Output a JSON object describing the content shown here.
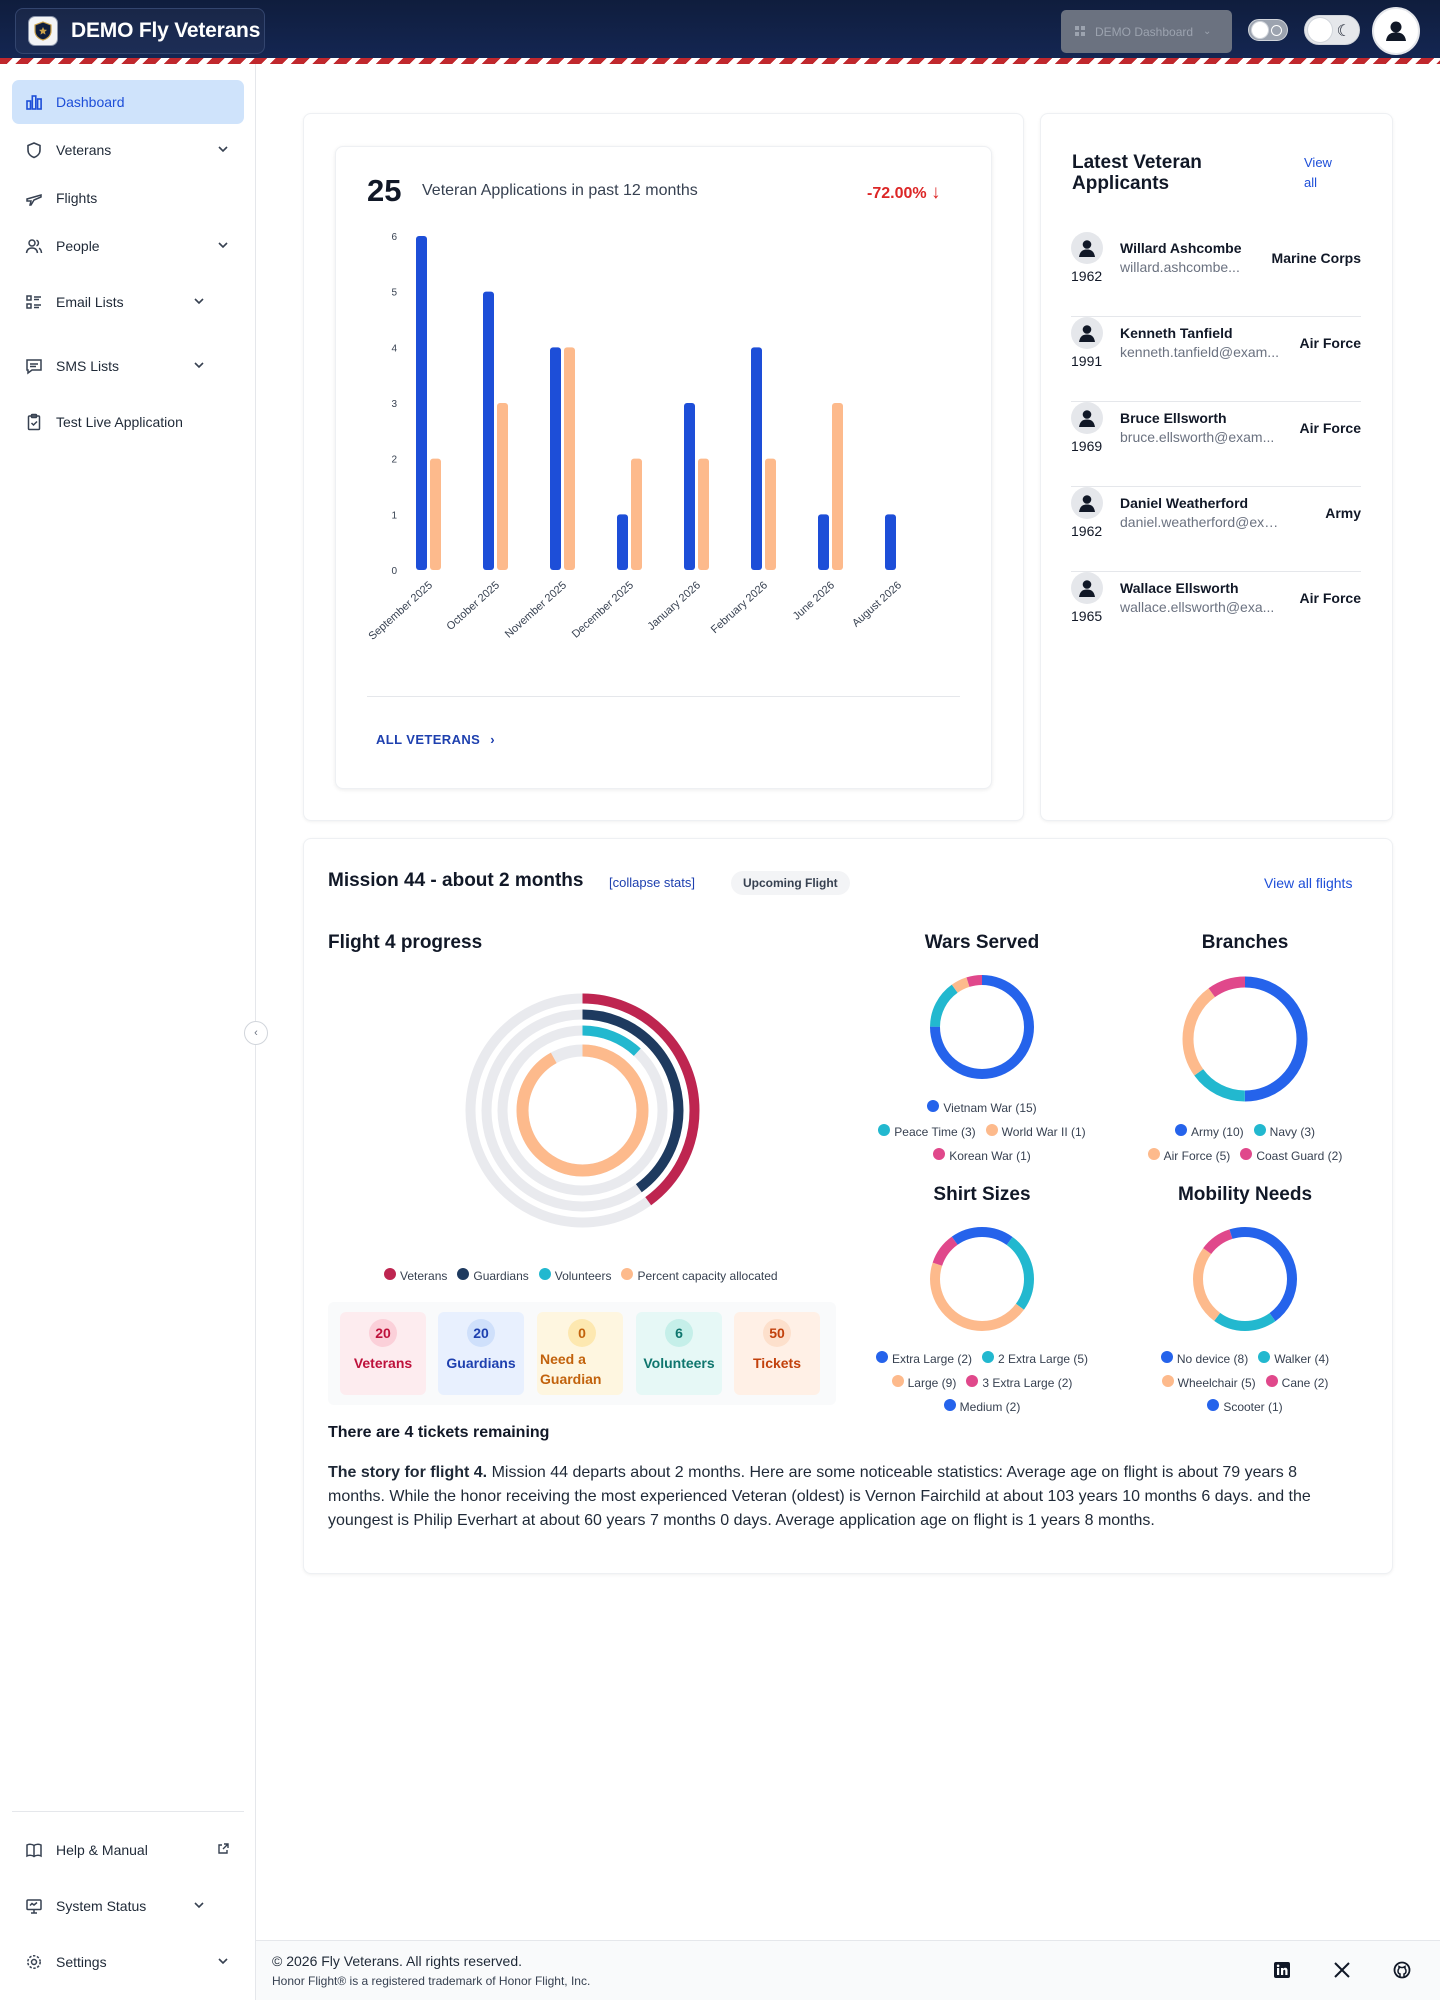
{
  "header": {
    "brand": "DEMO Fly Veterans",
    "dashboard_select": "DEMO Dashboard"
  },
  "sidebar": {
    "items": [
      {
        "label": "Dashboard",
        "icon": "bar-chart-icon",
        "active": true
      },
      {
        "label": "Veterans",
        "icon": "shield-icon",
        "expandable": true
      },
      {
        "label": "Flights",
        "icon": "plane-icon"
      },
      {
        "label": "People",
        "icon": "people-icon",
        "expandable": true
      },
      {
        "label": "Email Lists",
        "icon": "list-icon",
        "expandable": true
      },
      {
        "label": "SMS Lists",
        "icon": "message-icon",
        "expandable": true
      },
      {
        "label": "Test Live Application",
        "icon": "clipboard-icon"
      }
    ],
    "bottom": [
      {
        "label": "Help & Manual",
        "icon": "book-icon"
      },
      {
        "label": "System Status",
        "icon": "monitor-icon"
      },
      {
        "label": "Settings",
        "icon": "gear-icon"
      }
    ]
  },
  "applications": {
    "count": "25",
    "label": "Veteran Applications in past 12 months",
    "change": "-72.00%",
    "all_link": "ALL VETERANS"
  },
  "chart_data": {
    "type": "bar",
    "categories": [
      "September 2025",
      "October 2025",
      "November 2025",
      "December 2025",
      "January 2026",
      "February 2026",
      "June 2026",
      "August 2026"
    ],
    "series": [
      {
        "values": [
          6,
          5,
          4,
          1,
          3,
          4,
          1,
          1
        ],
        "color": "#1d4ed8"
      },
      {
        "values": [
          2,
          3,
          4,
          2,
          2,
          2,
          3,
          0
        ],
        "color": "#fdba8c"
      }
    ],
    "ylim": [
      0,
      6
    ],
    "yticks": [
      "0",
      "1",
      "2",
      "3",
      "4",
      "5",
      "6"
    ],
    "grid": false
  },
  "latest": {
    "title": "Latest Veteran Applicants",
    "view_all": "View all",
    "applicants": [
      {
        "name": "Willard Ashcombe",
        "email": "willard.ashcombe...",
        "year": "1962",
        "branch": "Marine Corps"
      },
      {
        "name": "Kenneth Tanfield",
        "email": "kenneth.tanfield@exam...",
        "year": "1991",
        "branch": "Air Force"
      },
      {
        "name": "Bruce Ellsworth",
        "email": "bruce.ellsworth@exam...",
        "year": "1969",
        "branch": "Air Force"
      },
      {
        "name": "Daniel Weatherford",
        "email": "daniel.weatherford@examp...",
        "year": "1962",
        "branch": "Army"
      },
      {
        "name": "Wallace Ellsworth",
        "email": "wallace.ellsworth@exa...",
        "year": "1965",
        "branch": "Air Force"
      }
    ]
  },
  "mission": {
    "title": "Mission 44 - about 2 months",
    "collapse": "[collapse stats]",
    "badge": "Upcoming Flight",
    "view_all": "View all flights",
    "progress_title": "Flight 4 progress",
    "ring_legend": [
      {
        "label": "Veterans",
        "color": "#be2550",
        "fraction": 0.4
      },
      {
        "label": "Guardians",
        "color": "#1e3a5f",
        "fraction": 0.4
      },
      {
        "label": "Volunteers",
        "color": "#22b8cf",
        "fraction": 0.12
      },
      {
        "label": "Percent capacity allocated",
        "color": "#fdba8c",
        "fraction": 0.92
      }
    ],
    "stats": [
      {
        "value": "20",
        "label": "Veterans"
      },
      {
        "value": "20",
        "label": "Guardians"
      },
      {
        "value": "0",
        "label": "Need a Guardian"
      },
      {
        "value": "6",
        "label": "Volunteers"
      },
      {
        "value": "50",
        "label": "Tickets"
      }
    ],
    "tickets_remaining": "There are 4 tickets remaining",
    "story_lead": "The story for flight 4.",
    "story_text": " Mission 44 departs about 2 months. Here are some noticeable statistics: Average age on flight is about 79 years 8 months. While the honor receiving the most experienced Veteran (oldest) is Vernon Fairchild at about 103 years 10 months 6 days.  and the youngest is Philip Everhart at about 60 years 7 months 0 days. Average application age on flight is 1 years 8 months.",
    "donuts": [
      {
        "title": "Wars Served",
        "slices": [
          {
            "label": "Vietnam War (15)",
            "value": 15,
            "color": "#2563eb"
          },
          {
            "label": "Peace Time (3)",
            "value": 3,
            "color": "#22b8cf"
          },
          {
            "label": "World War II (1)",
            "value": 1,
            "color": "#fdba8c"
          },
          {
            "label": "Korean War (1)",
            "value": 1,
            "color": "#e0488b"
          }
        ]
      },
      {
        "title": "Branches",
        "slices": [
          {
            "label": "Army (10)",
            "value": 10,
            "color": "#2563eb"
          },
          {
            "label": "Navy (3)",
            "value": 3,
            "color": "#22b8cf"
          },
          {
            "label": "Air Force (5)",
            "value": 5,
            "color": "#fdba8c"
          },
          {
            "label": "Coast Guard (2)",
            "value": 2,
            "color": "#e0488b"
          }
        ]
      },
      {
        "title": "Shirt Sizes",
        "slices": [
          {
            "label": "Extra Large (2)",
            "value": 2,
            "color": "#2563eb"
          },
          {
            "label": "2 Extra Large (5)",
            "value": 5,
            "color": "#22b8cf"
          },
          {
            "label": "Large (9)",
            "value": 9,
            "color": "#fdba8c"
          },
          {
            "label": "3 Extra Large (2)",
            "value": 2,
            "color": "#e0488b"
          },
          {
            "label": "Medium (2)",
            "value": 2,
            "color": "#2563eb"
          }
        ]
      },
      {
        "title": "Mobility Needs",
        "slices": [
          {
            "label": "No device (8)",
            "value": 8,
            "color": "#2563eb"
          },
          {
            "label": "Walker (4)",
            "value": 4,
            "color": "#22b8cf"
          },
          {
            "label": "Wheelchair (5)",
            "value": 5,
            "color": "#fdba8c"
          },
          {
            "label": "Cane (2)",
            "value": 2,
            "color": "#e0488b"
          },
          {
            "label": "Scooter (1)",
            "value": 1,
            "color": "#2563eb"
          }
        ]
      }
    ]
  },
  "footer": {
    "copyright": "© 2026 Fly Veterans. All rights reserved.",
    "trademark": "Honor Flight® is a registered trademark of Honor Flight, Inc."
  }
}
